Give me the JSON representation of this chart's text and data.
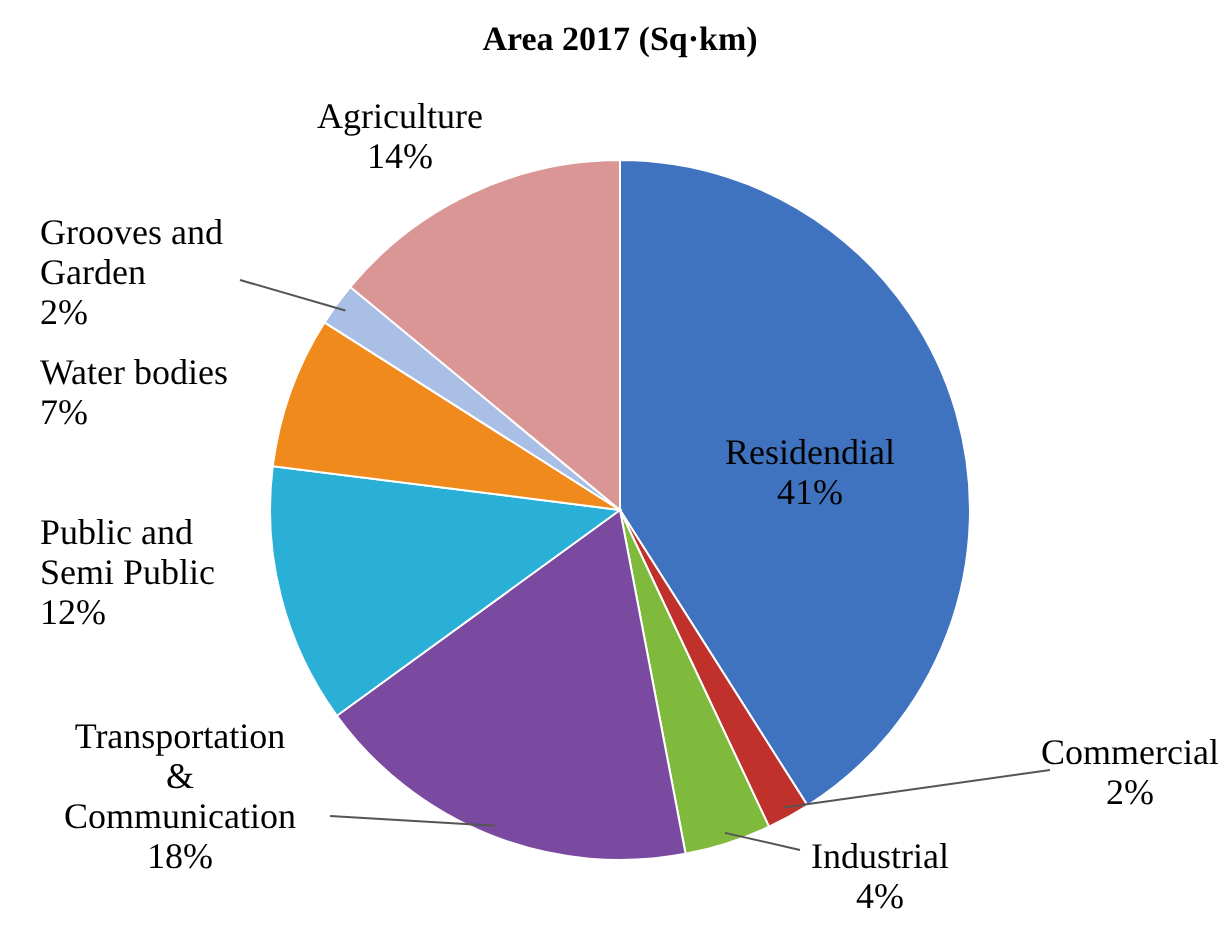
{
  "chart_data": {
    "type": "pie",
    "title": "Area 2017 (Sq·km)",
    "categories": [
      "Residendial",
      "Commercial",
      "Industrial",
      "Transportation\n&\nCommunication",
      "Public and\nSemi Public",
      "Water bodies",
      "Grooves and\nGarden",
      "Agriculture"
    ],
    "values": [
      41,
      2,
      4,
      18,
      12,
      7,
      2,
      14
    ],
    "value_labels": [
      "41%",
      "2%",
      "4%",
      "18%",
      "12%",
      "7%",
      "2%",
      "14%"
    ],
    "colors": [
      "#3f73c0",
      "#c0312b",
      "#7fba3c",
      "#7a4aa0",
      "#2ab0d6",
      "#f08a1c",
      "#a9bfe6",
      "#d99694"
    ]
  }
}
